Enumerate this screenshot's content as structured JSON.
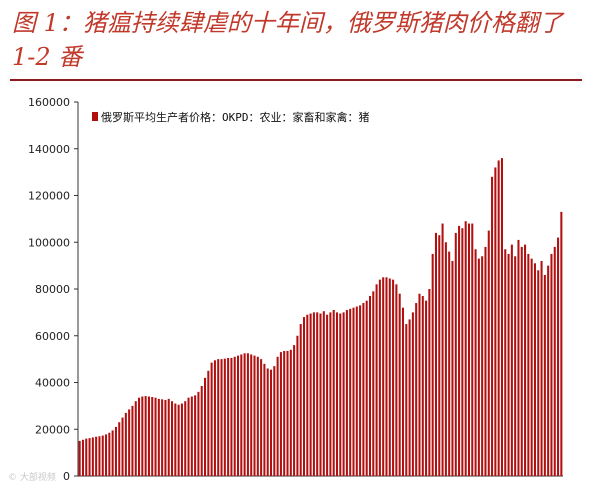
{
  "title": "图 1：猪瘟持续肆虐的十年间，俄罗斯猪肉价格翻了 1-2 番",
  "colors": {
    "title": "#c0392b",
    "bar": "#b01010",
    "rule": "#8b1a1a"
  },
  "chart_data": {
    "type": "bar",
    "title": "",
    "xlabel": "",
    "ylabel": "",
    "ylim": [
      0,
      160000
    ],
    "yticks": [
      0,
      20000,
      40000,
      60000,
      80000,
      100000,
      120000,
      140000,
      160000
    ],
    "ytick_labels": [
      "0",
      "20000",
      "40000",
      "60000",
      "80000",
      "100000",
      "120000",
      "140000",
      "160000"
    ],
    "grid": false,
    "legend_position": "top-left",
    "series": [
      {
        "name": "俄罗斯平均生产者价格：OKPD：农业：家畜和家禽：猪",
        "values": [
          15000,
          15500,
          16000,
          16200,
          16500,
          16800,
          17000,
          17300,
          17800,
          18500,
          19500,
          21000,
          23000,
          25000,
          27000,
          28500,
          30000,
          32000,
          33500,
          34000,
          34200,
          34000,
          33800,
          33500,
          33000,
          32800,
          32500,
          33000,
          32000,
          31000,
          30500,
          31000,
          32000,
          33500,
          34000,
          34500,
          36000,
          38500,
          42000,
          45000,
          48500,
          49500,
          50000,
          50000,
          50200,
          50500,
          50500,
          51000,
          51500,
          52000,
          52500,
          52500,
          52000,
          51500,
          51000,
          50000,
          48000,
          46000,
          45500,
          47000,
          51000,
          53000,
          53500,
          53500,
          54000,
          56000,
          60000,
          65000,
          68000,
          69000,
          69500,
          70000,
          70000,
          69500,
          70500,
          69000,
          70000,
          71000,
          70000,
          69500,
          70000,
          71000,
          71500,
          72000,
          72500,
          73000,
          74000,
          75000,
          77000,
          79000,
          82000,
          84000,
          85000,
          85000,
          84500,
          84000,
          82000,
          78000,
          72000,
          65000,
          67000,
          70000,
          74000,
          78000,
          77000,
          75000,
          80000,
          95000,
          104000,
          103000,
          108000,
          100000,
          96000,
          92000,
          104000,
          107000,
          106000,
          109000,
          108000,
          108000,
          97000,
          93000,
          94000,
          98000,
          105000,
          128000,
          132000,
          135000,
          136000,
          97000,
          95000,
          99000,
          94000,
          101000,
          98000,
          99000,
          95000,
          93000,
          91000,
          88000,
          92000,
          86000,
          90000,
          95000,
          98000,
          102000,
          113000
        ]
      }
    ]
  },
  "watermark": "© 大部视频"
}
